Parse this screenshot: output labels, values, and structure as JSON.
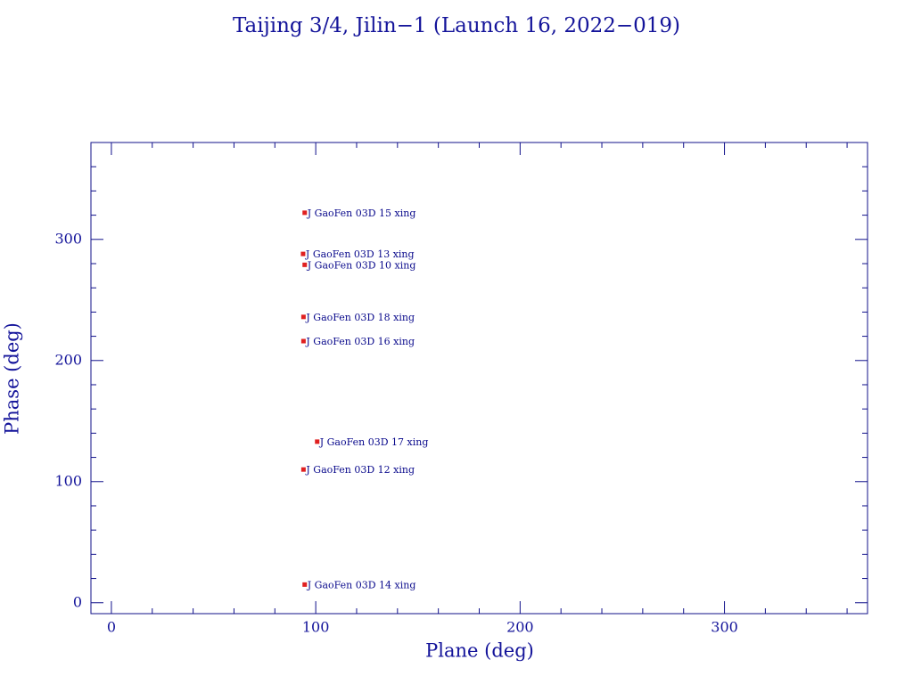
{
  "chart_data": {
    "type": "scatter",
    "title": "Taijing 3/4, Jilin−1 (Launch 16, 2022−019)",
    "xlabel": "Plane (deg)",
    "ylabel": "Phase (deg)",
    "xlim": [
      -10,
      370
    ],
    "ylim": [
      -9,
      380
    ],
    "xticks": [
      0,
      100,
      200,
      300
    ],
    "yticks": [
      0,
      100,
      200,
      300
    ],
    "xminorticks": [
      20,
      40,
      60,
      80,
      120,
      140,
      160,
      180,
      220,
      240,
      260,
      280,
      320,
      340,
      360
    ],
    "yminorticks": [
      20,
      40,
      60,
      80,
      120,
      140,
      160,
      180,
      220,
      240,
      260,
      280,
      320,
      340,
      360
    ],
    "x": [
      94.6,
      93.8,
      94.6,
      94,
      94,
      100.7,
      94,
      94.6
    ],
    "values": [
      322,
      288,
      279,
      236,
      216,
      133,
      110,
      15
    ],
    "labels": [
      "J GaoFen 03D 15 xing",
      "J GaoFen 03D 13 xing",
      "J GaoFen 03D 10 xing",
      "J GaoFen 03D 18 xing",
      "J GaoFen 03D 16 xing",
      "J GaoFen 03D 17 xing",
      "J GaoFen 03D 12 xing",
      "J GaoFen 03D 14 xing"
    ],
    "color": "#e02020",
    "axis_color": "#10108a"
  }
}
